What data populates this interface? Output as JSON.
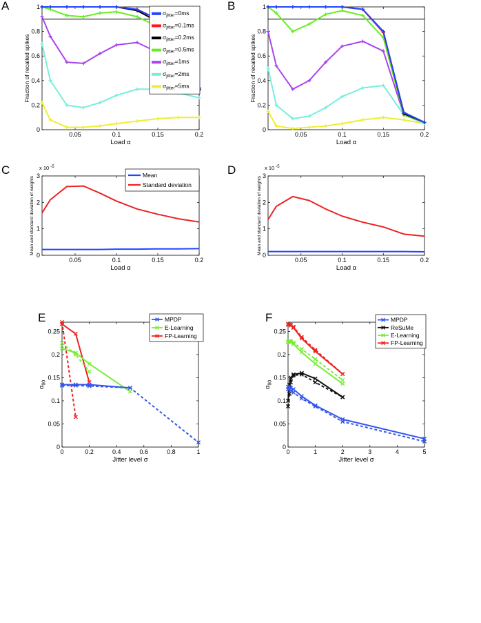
{
  "figure": {
    "panels": [
      "A",
      "B",
      "C",
      "D",
      "E",
      "F"
    ]
  },
  "chart_data": [
    {
      "panel": "A",
      "type": "line",
      "xlabel": "Load α",
      "ylabel": "Fraction of recalled spikes",
      "xlim": [
        0.01,
        0.2
      ],
      "ylim": [
        0,
        1
      ],
      "xticks": [
        0.05,
        0.1,
        0.15,
        0.2
      ],
      "xtick_labels": [
        "0.05",
        "0.1",
        "0.15",
        "0.2"
      ],
      "yticks": [
        0,
        0.2,
        0.4,
        0.6,
        0.8,
        1
      ],
      "ytick_labels": [
        "0",
        "0.2",
        "0.4",
        "0.6",
        "0.8",
        "1"
      ],
      "hline": 0.9,
      "legend_position": "top-right",
      "legend": [
        {
          "sym": "σ",
          "sub": "jitter",
          "rest": "=0ms",
          "color": "#2244ff"
        },
        {
          "sym": "σ",
          "sub": "jitter",
          "rest": "=0.1ms",
          "color": "#ff1a1a"
        },
        {
          "sym": "σ",
          "sub": "jitter",
          "rest": "=0.2ms",
          "color": "#000000"
        },
        {
          "sym": "σ",
          "sub": "jitter",
          "rest": "=0.5ms",
          "color": "#66ee22"
        },
        {
          "sym": "σ",
          "sub": "jitter",
          "rest": "=1ms",
          "color": "#aa44ee"
        },
        {
          "sym": "σ",
          "sub": "jitter",
          "rest": "=2ms",
          "color": "#77eedd"
        },
        {
          "sym": "σ",
          "sub": "jitter",
          "rest": "=5ms",
          "color": "#eeee33"
        }
      ],
      "x": [
        0.01,
        0.02,
        0.04,
        0.06,
        0.08,
        0.1,
        0.125,
        0.15,
        0.175,
        0.2
      ],
      "series": [
        {
          "name": "0ms",
          "color": "#2244ff",
          "values": [
            1,
            1,
            1,
            1,
            1,
            1,
            0.98,
            0.9,
            0.72,
            0.34
          ]
        },
        {
          "name": "0.1ms",
          "color": "#ff1a1a",
          "values": [
            1,
            1,
            1,
            1,
            1,
            1,
            0.98,
            0.9,
            0.72,
            0.34
          ]
        },
        {
          "name": "0.2ms",
          "color": "#000000",
          "values": [
            1,
            1,
            1,
            1,
            1,
            1,
            0.97,
            0.88,
            0.7,
            0.33
          ]
        },
        {
          "name": "0.5ms",
          "color": "#66ee22",
          "values": [
            1,
            0.98,
            0.93,
            0.92,
            0.95,
            0.96,
            0.92,
            0.84,
            0.65,
            0.34
          ]
        },
        {
          "name": "1ms",
          "color": "#aa44ee",
          "values": [
            0.92,
            0.76,
            0.55,
            0.54,
            0.62,
            0.69,
            0.71,
            0.63,
            0.5,
            0.32
          ]
        },
        {
          "name": "2ms",
          "color": "#77eedd",
          "values": [
            0.7,
            0.4,
            0.2,
            0.18,
            0.22,
            0.28,
            0.33,
            0.33,
            0.3,
            0.26
          ]
        },
        {
          "name": "5ms",
          "color": "#eeee33",
          "values": [
            0.22,
            0.08,
            0.02,
            0.02,
            0.03,
            0.05,
            0.07,
            0.09,
            0.1,
            0.1
          ]
        }
      ]
    },
    {
      "panel": "B",
      "type": "line",
      "xlabel": "Load α",
      "ylabel": "Fraction of recalled spikes",
      "xlim": [
        0.01,
        0.2
      ],
      "ylim": [
        0,
        1
      ],
      "xticks": [
        0.05,
        0.1,
        0.15,
        0.2
      ],
      "xtick_labels": [
        "0.05",
        "0.1",
        "0.15",
        "0.2"
      ],
      "yticks": [
        0,
        0.2,
        0.4,
        0.6,
        0.8,
        1
      ],
      "ytick_labels": [
        "0",
        "0.2",
        "0.4",
        "0.6",
        "0.8",
        "1"
      ],
      "hline": 0.9,
      "x": [
        0.01,
        0.02,
        0.04,
        0.06,
        0.08,
        0.1,
        0.125,
        0.15,
        0.175,
        0.2
      ],
      "series": [
        {
          "name": "0ms",
          "color": "#2244ff",
          "values": [
            1,
            1,
            1,
            1,
            1,
            1,
            0.98,
            0.8,
            0.14,
            0.06
          ]
        },
        {
          "name": "0.1ms",
          "color": "#ff1a1a",
          "values": [
            1,
            1,
            1,
            1,
            1,
            1,
            0.98,
            0.79,
            0.14,
            0.06
          ]
        },
        {
          "name": "0.2ms",
          "color": "#000000",
          "values": [
            1,
            1,
            1,
            1,
            1,
            1,
            0.98,
            0.8,
            0.13,
            0.06
          ]
        },
        {
          "name": "0.5ms",
          "color": "#66ee22",
          "values": [
            1,
            0.95,
            0.8,
            0.86,
            0.94,
            0.97,
            0.93,
            0.75,
            0.12,
            0.06
          ]
        },
        {
          "name": "1ms",
          "color": "#aa44ee",
          "values": [
            0.8,
            0.52,
            0.33,
            0.4,
            0.55,
            0.68,
            0.72,
            0.64,
            0.12,
            0.06
          ]
        },
        {
          "name": "2ms",
          "color": "#77eedd",
          "values": [
            0.5,
            0.2,
            0.09,
            0.11,
            0.18,
            0.27,
            0.34,
            0.36,
            0.12,
            0.05
          ]
        },
        {
          "name": "5ms",
          "color": "#eeee33",
          "values": [
            0.15,
            0.03,
            0.01,
            0.02,
            0.03,
            0.05,
            0.08,
            0.1,
            0.08,
            0.05
          ]
        }
      ]
    },
    {
      "panel": "C",
      "type": "line",
      "xlabel": "Load α",
      "ylabel": "Mean and standard deviation of weights",
      "scale_label": "x 10",
      "scale_exp": "-5",
      "xlim": [
        0.01,
        0.2
      ],
      "ylim": [
        0,
        3
      ],
      "xticks": [
        0.05,
        0.1,
        0.15,
        0.2
      ],
      "xtick_labels": [
        "0.05",
        "0.1",
        "0.15",
        "0.2"
      ],
      "yticks": [
        0,
        1,
        2,
        3
      ],
      "ytick_labels": [
        "0",
        "1",
        "2",
        "3"
      ],
      "legend_position": "top-right",
      "legend": [
        {
          "label": "Mean",
          "color": "#2244ff"
        },
        {
          "label": "Standard deviation",
          "color": "#ee2222"
        }
      ],
      "x": [
        0.01,
        0.02,
        0.04,
        0.06,
        0.08,
        0.1,
        0.125,
        0.15,
        0.175,
        0.2
      ],
      "series": [
        {
          "name": "Mean",
          "color": "#2244ff",
          "values": [
            0.22,
            0.22,
            0.22,
            0.22,
            0.22,
            0.23,
            0.23,
            0.24,
            0.24,
            0.25
          ]
        },
        {
          "name": "Standard deviation",
          "color": "#ee2222",
          "values": [
            1.6,
            2.1,
            2.6,
            2.62,
            2.35,
            2.05,
            1.75,
            1.55,
            1.38,
            1.26
          ]
        }
      ]
    },
    {
      "panel": "D",
      "type": "line",
      "xlabel": "Load α",
      "ylabel": "Mean and standard deviation of weights",
      "scale_label": "x 10",
      "scale_exp": "-5",
      "xlim": [
        0.01,
        0.2
      ],
      "ylim": [
        0,
        3
      ],
      "xticks": [
        0.05,
        0.1,
        0.15,
        0.2
      ],
      "xtick_labels": [
        "0.05",
        "0.1",
        "0.15",
        "0.2"
      ],
      "yticks": [
        0,
        1,
        2,
        3
      ],
      "ytick_labels": [
        "0",
        "1",
        "2",
        "3"
      ],
      "x": [
        0.01,
        0.02,
        0.04,
        0.06,
        0.08,
        0.1,
        0.125,
        0.15,
        0.175,
        0.2
      ],
      "series": [
        {
          "name": "Mean",
          "color": "#2244ff",
          "values": [
            0.14,
            0.14,
            0.14,
            0.14,
            0.14,
            0.14,
            0.14,
            0.14,
            0.14,
            0.13
          ]
        },
        {
          "name": "Standard deviation",
          "color": "#ee2222",
          "values": [
            1.35,
            1.85,
            2.22,
            2.07,
            1.75,
            1.48,
            1.25,
            1.07,
            0.8,
            0.72
          ]
        }
      ]
    },
    {
      "panel": "E",
      "type": "line",
      "xlabel": "Jitter level σ",
      "ylabel": "α",
      "ylabel_sub": "90",
      "xlim": [
        0,
        1
      ],
      "ylim": [
        0,
        0.27
      ],
      "xticks": [
        0,
        0.2,
        0.4,
        0.6,
        0.8,
        1
      ],
      "xtick_labels": [
        "0",
        "0.2",
        "0.4",
        "0.6",
        "0.8",
        "1"
      ],
      "yticks": [
        0,
        0.05,
        0.1,
        0.15,
        0.2,
        0.25
      ],
      "ytick_labels": [
        "0",
        "0.05",
        "0.1",
        "0.15",
        "0.2",
        "0.25"
      ],
      "legend_position": "top-right",
      "legend": [
        {
          "label": "MPDP",
          "color": "#3355ee"
        },
        {
          "label": "E-Learning",
          "color": "#77ee33"
        },
        {
          "label": "FP-Learning",
          "color": "#ee2222"
        }
      ],
      "series": [
        {
          "name": "MPDP",
          "color": "#3355ee",
          "style": "solid",
          "x": [
            0,
            0.1,
            0.2,
            0.5
          ],
          "values": [
            0.135,
            0.135,
            0.135,
            0.128
          ]
        },
        {
          "name": "MPDP",
          "color": "#3355ee",
          "style": "dashed",
          "x": [
            0,
            0.1,
            0.2,
            0.5,
            1
          ],
          "values": [
            0.133,
            0.133,
            0.132,
            0.128,
            0.01
          ]
        },
        {
          "name": "E-Learning",
          "color": "#77ee33",
          "style": "solid",
          "x": [
            0,
            0.1,
            0.2,
            0.5
          ],
          "values": [
            0.213,
            0.204,
            0.18,
            0.12
          ]
        },
        {
          "name": "E-Learning",
          "color": "#77ee33",
          "style": "dashed",
          "x": [
            0,
            0.1,
            0.2
          ],
          "values": [
            0.225,
            0.2,
            0.163
          ]
        },
        {
          "name": "FP-Learning",
          "color": "#ee2222",
          "style": "solid",
          "x": [
            0,
            0.1,
            0.2
          ],
          "values": [
            0.266,
            0.245,
            0.14
          ]
        },
        {
          "name": "FP-Learning",
          "color": "#ee2222",
          "style": "dashed",
          "x": [
            0,
            0.1
          ],
          "values": [
            0.27,
            0.065
          ]
        }
      ]
    },
    {
      "panel": "F",
      "type": "line",
      "xlabel": "Jitter level σ",
      "ylabel": "α",
      "ylabel_sub": "90",
      "xlim": [
        0,
        5
      ],
      "ylim": [
        0,
        0.27
      ],
      "xticks": [
        0,
        1,
        2,
        3,
        4,
        5
      ],
      "xtick_labels": [
        "0",
        "1",
        "2",
        "3",
        "4",
        "5"
      ],
      "yticks": [
        0,
        0.05,
        0.1,
        0.15,
        0.2,
        0.25
      ],
      "ytick_labels": [
        "0",
        "0.05",
        "0.1",
        "0.15",
        "0.2",
        "0.25"
      ],
      "legend_position": "top-right",
      "legend": [
        {
          "label": "MPDP",
          "color": "#3355ee"
        },
        {
          "label": "ReSuMe",
          "color": "#111111"
        },
        {
          "label": "E-Learning",
          "color": "#77ee33"
        },
        {
          "label": "FP-Learning",
          "color": "#ee2222"
        }
      ],
      "series": [
        {
          "name": "MPDP",
          "color": "#3355ee",
          "style": "solid",
          "x": [
            0,
            0.05,
            0.1,
            0.2,
            0.5,
            1,
            2,
            5
          ],
          "values": [
            0.13,
            0.13,
            0.128,
            0.125,
            0.11,
            0.09,
            0.06,
            0.018
          ]
        },
        {
          "name": "MPDP",
          "color": "#3355ee",
          "style": "dashed",
          "x": [
            0,
            0.05,
            0.1,
            0.2,
            0.5,
            1,
            2,
            5
          ],
          "values": [
            0.125,
            0.125,
            0.122,
            0.118,
            0.105,
            0.088,
            0.055,
            0.012
          ]
        },
        {
          "name": "ReSuMe",
          "color": "#111111",
          "style": "solid",
          "x": [
            0,
            0.05,
            0.1,
            0.2,
            0.5,
            1,
            2
          ],
          "values": [
            0.1,
            0.135,
            0.15,
            0.157,
            0.16,
            0.148,
            0.108
          ]
        },
        {
          "name": "ReSuMe",
          "color": "#111111",
          "style": "dashed",
          "x": [
            0,
            0.05,
            0.1,
            0.2,
            0.5,
            1,
            2
          ],
          "values": [
            0.088,
            0.115,
            0.14,
            0.155,
            0.157,
            0.14,
            0.108
          ]
        },
        {
          "name": "E-Learning",
          "color": "#77ee33",
          "style": "solid",
          "x": [
            0,
            0.05,
            0.1,
            0.2,
            0.5,
            1,
            2
          ],
          "values": [
            0.227,
            0.228,
            0.227,
            0.223,
            0.205,
            0.18,
            0.137
          ]
        },
        {
          "name": "E-Learning",
          "color": "#77ee33",
          "style": "dashed",
          "x": [
            0,
            0.05,
            0.1,
            0.2,
            0.5,
            1,
            2
          ],
          "values": [
            0.228,
            0.229,
            0.229,
            0.226,
            0.212,
            0.19,
            0.145
          ]
        },
        {
          "name": "FP-Learning",
          "color": "#ee2222",
          "style": "solid",
          "x": [
            0,
            0.05,
            0.1,
            0.2,
            0.5,
            1,
            2
          ],
          "values": [
            0.265,
            0.265,
            0.263,
            0.258,
            0.235,
            0.207,
            0.158
          ]
        },
        {
          "name": "FP-Learning",
          "color": "#ee2222",
          "style": "dashed",
          "x": [
            0,
            0.05,
            0.1,
            0.2,
            0.5,
            1,
            2
          ],
          "values": [
            0.266,
            0.265,
            0.264,
            0.26,
            0.238,
            0.21,
            0.158
          ]
        }
      ]
    }
  ]
}
